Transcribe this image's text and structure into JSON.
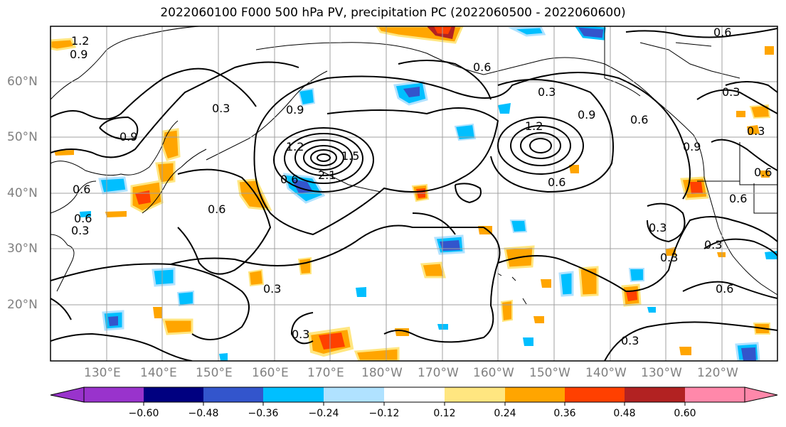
{
  "title": "2022060100 F000 500 hPa PV, precipitation PC (2022060500 - 2022060600)",
  "lat_labels": [
    "60°N",
    "50°N",
    "40°N",
    "30°N",
    "20°N"
  ],
  "lon_labels": [
    "130°E",
    "140°E",
    "150°E",
    "160°E",
    "170°E",
    "180°W",
    "170°W",
    "160°W",
    "150°W",
    "140°W",
    "130°W",
    "120°W"
  ],
  "contour_labels": [
    "1.2",
    "0.9",
    "0.3",
    "0.9",
    "0.6",
    "0.6",
    "1.2",
    "0.9",
    "1.5",
    "2.1",
    "0.6",
    "0.9",
    "1.2",
    "0.3",
    "0.9",
    "0.6",
    "0.3",
    "0.6",
    "0.6",
    "0.3",
    "0.3",
    "0.3",
    "0.3",
    "0.3",
    "0.6",
    "0.3",
    "0.6",
    "0.6",
    "0.3",
    "0.3",
    "0.6",
    "0.6"
  ],
  "colorbar": {
    "ticks": [
      "−0.60",
      "−0.48",
      "−0.36",
      "−0.24",
      "−0.12",
      "0.12",
      "0.24",
      "0.36",
      "0.48",
      "0.60"
    ],
    "colors": [
      "#9933cc",
      "#000080",
      "#3355cc",
      "#00bfff",
      "#b0e2ff",
      "#ffffff",
      "#ffe680",
      "#ffa500",
      "#ff4000",
      "#b22222",
      "#ff88aa"
    ]
  },
  "colors": {
    "land_border": "#000000",
    "grid": "#a0a0a0",
    "label_gray": "#808080"
  }
}
